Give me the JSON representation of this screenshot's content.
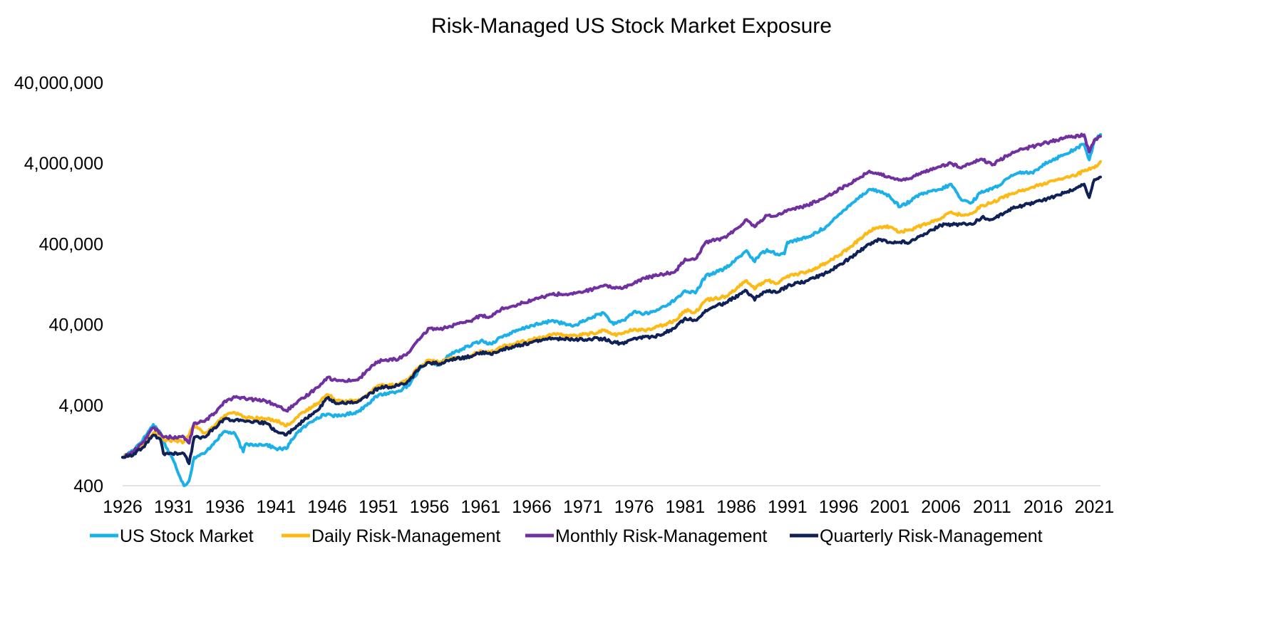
{
  "chart_data": {
    "type": "line",
    "title": "Risk-Managed US Stock Market Exposure",
    "xlabel": "",
    "ylabel": "",
    "y_scale": "log",
    "ylim": [
      400,
      40000000
    ],
    "xlim": [
      1926,
      2021.6
    ],
    "y_ticks": [
      {
        "value": 400,
        "label": "400"
      },
      {
        "value": 4000,
        "label": "4,000"
      },
      {
        "value": 40000,
        "label": "40,000"
      },
      {
        "value": 400000,
        "label": "400,000"
      },
      {
        "value": 4000000,
        "label": "4,000,000"
      },
      {
        "value": 40000000,
        "label": "40,000,000"
      }
    ],
    "x_ticks": [
      {
        "value": 1926,
        "label": "1926"
      },
      {
        "value": 1931,
        "label": "1931"
      },
      {
        "value": 1936,
        "label": "1936"
      },
      {
        "value": 1941,
        "label": "1941"
      },
      {
        "value": 1946,
        "label": "1946"
      },
      {
        "value": 1951,
        "label": "1951"
      },
      {
        "value": 1956,
        "label": "1956"
      },
      {
        "value": 1961,
        "label": "1961"
      },
      {
        "value": 1966,
        "label": "1966"
      },
      {
        "value": 1971,
        "label": "1971"
      },
      {
        "value": 1976,
        "label": "1976"
      },
      {
        "value": 1981,
        "label": "1981"
      },
      {
        "value": 1986,
        "label": "1986"
      },
      {
        "value": 1991,
        "label": "1991"
      },
      {
        "value": 1996,
        "label": "1996"
      },
      {
        "value": 2001,
        "label": "2001"
      },
      {
        "value": 2006,
        "label": "2006"
      },
      {
        "value": 2011,
        "label": "2011"
      },
      {
        "value": 2016,
        "label": "2016"
      },
      {
        "value": 2021,
        "label": "2021"
      }
    ],
    "grid": false,
    "legend_position": "bottom",
    "series": [
      {
        "name": "US Stock Market",
        "color": "#1BB0E8",
        "x": [
          1926,
          1927,
          1928,
          1929,
          1929.7,
          1930,
          1931,
          1932,
          1932.5,
          1933,
          1934,
          1935,
          1936,
          1937,
          1937.8,
          1938,
          1940,
          1941,
          1942,
          1943,
          1945,
          1946,
          1947,
          1949,
          1950,
          1951,
          1953,
          1954,
          1955,
          1956,
          1957,
          1958,
          1961,
          1962,
          1963,
          1966,
          1967,
          1968,
          1970,
          1972,
          1973,
          1974,
          1975,
          1976,
          1977,
          1978,
          1980,
          1981,
          1982,
          1983,
          1985,
          1987,
          1987.8,
          1988,
          1989,
          1990,
          1990.7,
          1991,
          1993,
          1995,
          1997,
          1998,
          1999,
          2000,
          2001,
          2002,
          2003,
          2004,
          2006,
          2007,
          2008,
          2009,
          2010,
          2011,
          2013,
          2014,
          2015,
          2016,
          2018,
          2019,
          2020,
          2020.5,
          2021,
          2021.6
        ],
        "values": [
          900,
          1100,
          1500,
          2300,
          1800,
          1400,
          800,
          400,
          460,
          900,
          1000,
          1400,
          1900,
          1750,
          1050,
          1300,
          1300,
          1150,
          1150,
          1800,
          2800,
          3100,
          2900,
          3300,
          4200,
          5300,
          6000,
          7000,
          11000,
          14000,
          12500,
          17000,
          25000,
          23000,
          28000,
          39000,
          41000,
          45000,
          38000,
          50000,
          56000,
          40000,
          45000,
          58000,
          54000,
          58000,
          80000,
          105000,
          98000,
          160000,
          200000,
          330000,
          240000,
          270000,
          340000,
          300000,
          300000,
          420000,
          480000,
          680000,
          1200000,
          1500000,
          1900000,
          1800000,
          1550000,
          1150000,
          1350000,
          1650000,
          1900000,
          2200000,
          1400000,
          1300000,
          1800000,
          1900000,
          2800000,
          3100000,
          3000000,
          3900000,
          5100000,
          5900000,
          6900000,
          4400000,
          7500000,
          9100000
        ]
      },
      {
        "name": "Daily Risk-Management",
        "color": "#FDBA15",
        "x": [
          1926,
          1927,
          1928,
          1929,
          1929.7,
          1930,
          1932,
          1933,
          1934,
          1935,
          1936,
          1937,
          1938,
          1940,
          1941,
          1942,
          1943,
          1945,
          1946,
          1947,
          1949,
          1950,
          1951,
          1953,
          1954,
          1955,
          1956,
          1957,
          1958,
          1960,
          1961,
          1962,
          1963,
          1966,
          1968,
          1970,
          1972,
          1973,
          1974,
          1975,
          1976,
          1977,
          1978,
          1980,
          1981,
          1982,
          1983,
          1985,
          1987,
          1987.8,
          1988,
          1989,
          1990,
          1991,
          1993,
          1995,
          1997,
          1998,
          1999,
          2000,
          2001,
          2002,
          2003,
          2006,
          2007,
          2008,
          2009,
          2010,
          2011,
          2013,
          2016,
          2018,
          2019,
          2020,
          2021,
          2021.6
        ],
        "values": [
          900,
          1000,
          1300,
          1800,
          1700,
          1500,
          1400,
          2200,
          1800,
          2200,
          3000,
          3200,
          2800,
          2700,
          2600,
          2200,
          2800,
          4200,
          5400,
          4600,
          4500,
          5500,
          7000,
          7300,
          8500,
          12000,
          14500,
          13500,
          15000,
          16000,
          19000,
          18000,
          21000,
          26000,
          30000,
          29000,
          31000,
          34000,
          30000,
          31000,
          35000,
          34000,
          36000,
          45000,
          60000,
          57000,
          80000,
          90000,
          140000,
          110000,
          120000,
          140000,
          130000,
          160000,
          180000,
          240000,
          350000,
          450000,
          580000,
          650000,
          650000,
          560000,
          600000,
          820000,
          1000000,
          900000,
          950000,
          1200000,
          1300000,
          1700000,
          2200000,
          2600000,
          2800000,
          3200000,
          3500000,
          4200000
        ]
      },
      {
        "name": "Monthly Risk-Management",
        "color": "#7030A0",
        "x": [
          1926,
          1927,
          1928,
          1929,
          1929.7,
          1930,
          1932,
          1932.5,
          1933,
          1934,
          1935,
          1936,
          1937,
          1938,
          1940,
          1941,
          1942,
          1943,
          1945,
          1946,
          1947,
          1949,
          1950,
          1951,
          1953,
          1954,
          1955,
          1956,
          1957,
          1958,
          1960,
          1961,
          1962,
          1963,
          1966,
          1968,
          1970,
          1972,
          1973,
          1974,
          1975,
          1976,
          1977,
          1978,
          1980,
          1981,
          1982,
          1983,
          1985,
          1987,
          1987.8,
          1988,
          1989,
          1990,
          1991,
          1993,
          1995,
          1997,
          1998,
          1999,
          2000,
          2001,
          2002,
          2003,
          2005,
          2007,
          2008,
          2009,
          2010,
          2011,
          2013,
          2016,
          2018,
          2019,
          2020,
          2020.5,
          2021,
          2021.6
        ],
        "values": [
          900,
          1050,
          1400,
          2100,
          1800,
          1600,
          1600,
          1350,
          2400,
          2500,
          3200,
          4500,
          5000,
          4800,
          4500,
          4000,
          3400,
          4200,
          6600,
          8800,
          8000,
          8200,
          11000,
          14000,
          15000,
          18000,
          26000,
          36000,
          35000,
          38000,
          44000,
          52000,
          50000,
          62000,
          80000,
          95000,
          95000,
          110000,
          120000,
          115000,
          115000,
          130000,
          150000,
          160000,
          180000,
          260000,
          260000,
          420000,
          480000,
          800000,
          650000,
          700000,
          900000,
          900000,
          1050000,
          1200000,
          1600000,
          2200000,
          2600000,
          3200000,
          2900000,
          2700000,
          2500000,
          2600000,
          3400000,
          4000000,
          3500000,
          4000000,
          4500000,
          3800000,
          5500000,
          7000000,
          8200000,
          8500000,
          9000000,
          5500000,
          7800000,
          8600000
        ]
      },
      {
        "name": "Quarterly Risk-Management",
        "color": "#0F2156",
        "x": [
          1926,
          1927,
          1928,
          1929,
          1929.7,
          1930,
          1932,
          1932.5,
          1933,
          1934,
          1935,
          1936,
          1937,
          1938,
          1940,
          1941,
          1942,
          1943,
          1945,
          1946,
          1947,
          1949,
          1950,
          1951,
          1953,
          1954,
          1955,
          1956,
          1957,
          1958,
          1960,
          1961,
          1962,
          1963,
          1966,
          1968,
          1970,
          1972,
          1973,
          1974,
          1975,
          1976,
          1977,
          1978,
          1980,
          1981,
          1982,
          1983,
          1985,
          1987,
          1987.8,
          1988,
          1989,
          1990,
          1991,
          1993,
          1995,
          1997,
          1998,
          1999,
          2000,
          2001,
          2002,
          2003,
          2006,
          2007,
          2008,
          2009,
          2010,
          2011,
          2013,
          2016,
          2018,
          2019,
          2020,
          2020.5,
          2021,
          2021.6
        ],
        "values": [
          900,
          950,
          1200,
          1700,
          1500,
          1000,
          1000,
          750,
          1600,
          1600,
          2100,
          2700,
          2600,
          2500,
          2400,
          1900,
          1700,
          2200,
          3400,
          4900,
          4200,
          4400,
          5300,
          6500,
          7000,
          8000,
          11500,
          13500,
          13000,
          14500,
          16000,
          18000,
          17000,
          19500,
          24000,
          27000,
          26000,
          26500,
          26500,
          24000,
          23000,
          27000,
          28000,
          28000,
          36000,
          48000,
          45000,
          60000,
          75000,
          105000,
          80000,
          90000,
          105000,
          100000,
          120000,
          140000,
          180000,
          260000,
          320000,
          400000,
          450000,
          420000,
          420000,
          420000,
          680000,
          700000,
          700000,
          700000,
          850000,
          800000,
          1100000,
          1400000,
          1700000,
          1900000,
          2200000,
          1500000,
          2500000,
          2700000
        ]
      }
    ]
  }
}
